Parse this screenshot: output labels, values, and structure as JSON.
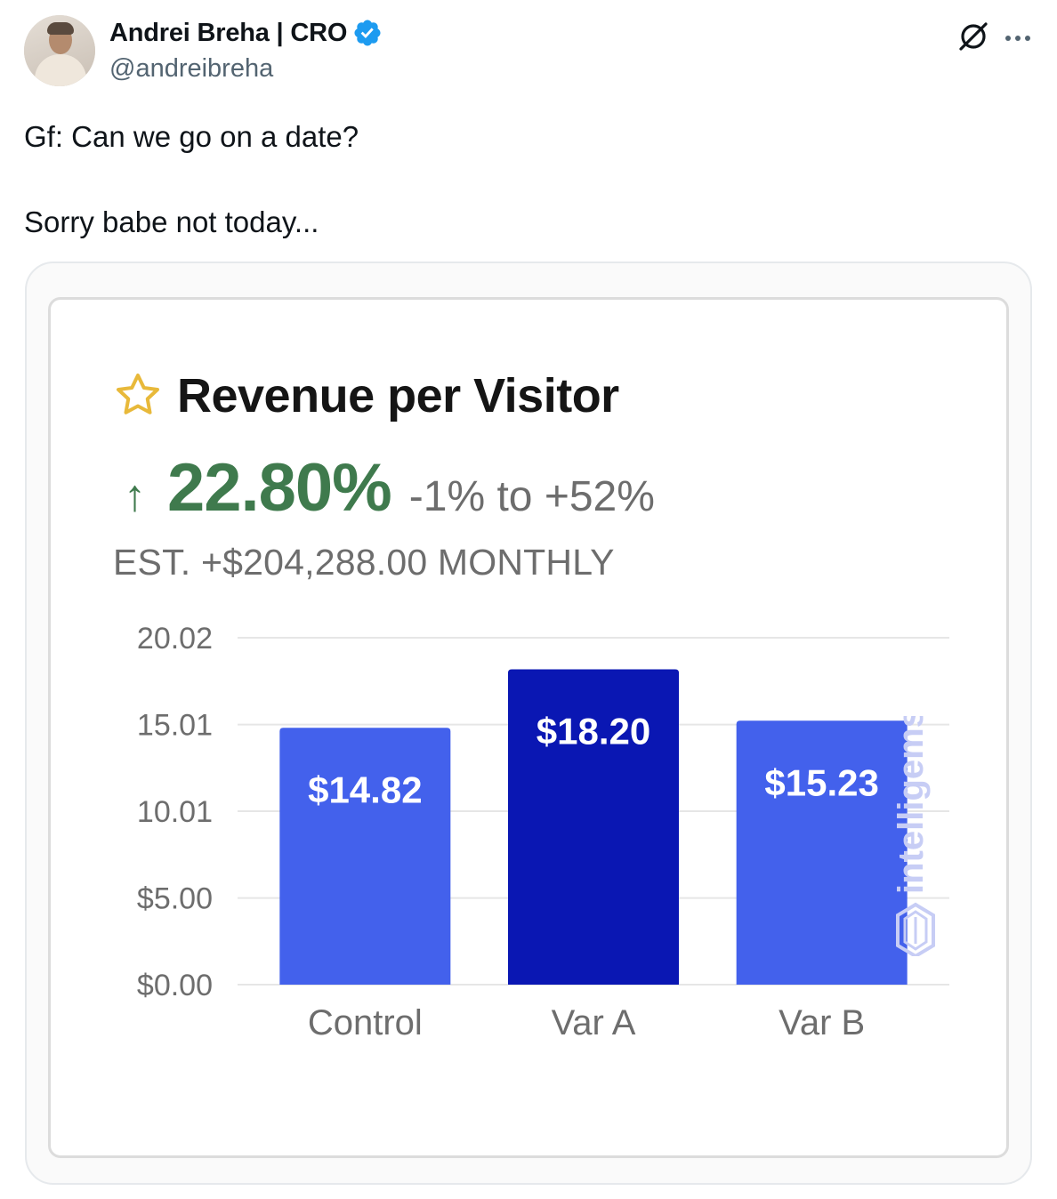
{
  "tweet": {
    "author": {
      "name": "Andrei Breha | CRO",
      "handle": "@andreibreha",
      "verified": true
    },
    "icons": {
      "grok": "grok-icon",
      "more": "more-options-icon",
      "verified": "verified-badge-icon"
    },
    "text_lines": [
      "Gf: Can we go on a date?",
      "Sorry babe not today..."
    ]
  },
  "card": {
    "title": "Revenue per Visitor",
    "lift_arrow": "↑",
    "lift": "22.80%",
    "range": "-1% to +52%",
    "estimate": "EST. +$204,288.00 MONTHLY",
    "watermark": "intelligems",
    "colors": {
      "accent_green": "#3f7a4d",
      "bar": "#4361ec",
      "bar_highlight": "#0a17b3",
      "star": "#e8b93a"
    }
  },
  "chart_data": {
    "type": "bar",
    "categories": [
      "Control",
      "Var A",
      "Var B"
    ],
    "values": [
      14.82,
      18.2,
      15.23
    ],
    "value_labels": [
      "$14.82",
      "$18.20",
      "$15.23"
    ],
    "y_ticks": [
      0,
      5.0,
      10.01,
      15.01,
      20.02
    ],
    "y_tick_labels": [
      "$0.00",
      "$5.00",
      "10.01",
      "15.01",
      "20.02"
    ],
    "ylim": [
      0,
      20.02
    ],
    "grid": true,
    "highlight_index": 1
  }
}
